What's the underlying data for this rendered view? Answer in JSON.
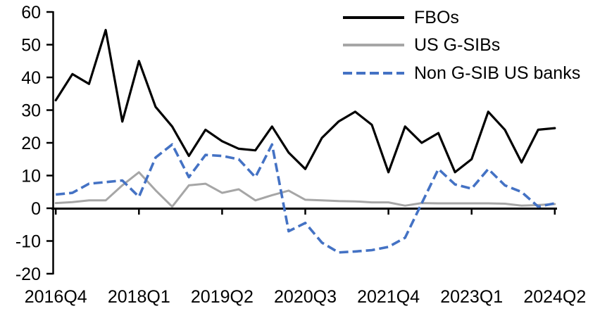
{
  "chart_data": {
    "type": "line",
    "title": "",
    "quarters": [
      "2016Q4",
      "2017Q1",
      "2017Q2",
      "2017Q3",
      "2017Q4",
      "2018Q1",
      "2018Q2",
      "2018Q3",
      "2018Q4",
      "2019Q1",
      "2019Q2",
      "2019Q3",
      "2019Q4",
      "2020Q1",
      "2020Q2",
      "2020Q3",
      "2020Q4",
      "2021Q1",
      "2021Q2",
      "2021Q3",
      "2021Q4",
      "2022Q1",
      "2022Q2",
      "2022Q3",
      "2022Q4",
      "2023Q1",
      "2023Q2",
      "2023Q3",
      "2023Q4",
      "2024Q1",
      "2024Q2"
    ],
    "series": [
      {
        "name": "FBOs",
        "color": "#000000",
        "style": "solid",
        "values": [
          33,
          41,
          38,
          54.5,
          26.5,
          45,
          31,
          25,
          16,
          24,
          20.5,
          18.2,
          17.7,
          25,
          17,
          12,
          21.5,
          26.5,
          29.5,
          25.5,
          11,
          25,
          20,
          23,
          11,
          15,
          29.5,
          24,
          14,
          24,
          24.5
        ]
      },
      {
        "name": "US G-SIBs",
        "color": "#A6A6A6",
        "style": "solid",
        "values": [
          1.6,
          1.9,
          2.4,
          2.4,
          7,
          11,
          5.5,
          0.5,
          7,
          7.5,
          4.7,
          5.8,
          2.4,
          4,
          5.4,
          2.6,
          2.4,
          2.2,
          2.1,
          1.8,
          1.8,
          0.8,
          1.6,
          1.5,
          1.5,
          1.5,
          1.5,
          1.4,
          0.8,
          1.0,
          1.3
        ]
      },
      {
        "name": "Non G-SIB US banks",
        "color": "#4472C4",
        "style": "dashed",
        "values": [
          4.2,
          4.7,
          7.5,
          8,
          8.5,
          3.5,
          15.5,
          19.5,
          9.5,
          16.3,
          16,
          15,
          9.5,
          19.5,
          -7,
          -4.5,
          -10.5,
          -13.5,
          -13.2,
          -12.8,
          -11.8,
          -9,
          1.5,
          12,
          7.3,
          6,
          12,
          7,
          5,
          0.5,
          1.5
        ]
      }
    ],
    "y_ticks": [
      60,
      50,
      40,
      30,
      20,
      10,
      0,
      -10,
      -20
    ],
    "ylim": [
      -20,
      60
    ],
    "x_tick_indices": [
      0,
      5,
      10,
      15,
      20,
      25,
      30
    ],
    "x_tick_labels": [
      "2016Q4",
      "2018Q1",
      "2019Q2",
      "2020Q3",
      "2021Q4",
      "2023Q1",
      "2024Q2"
    ],
    "legend_position": "top-right",
    "grid": false
  }
}
